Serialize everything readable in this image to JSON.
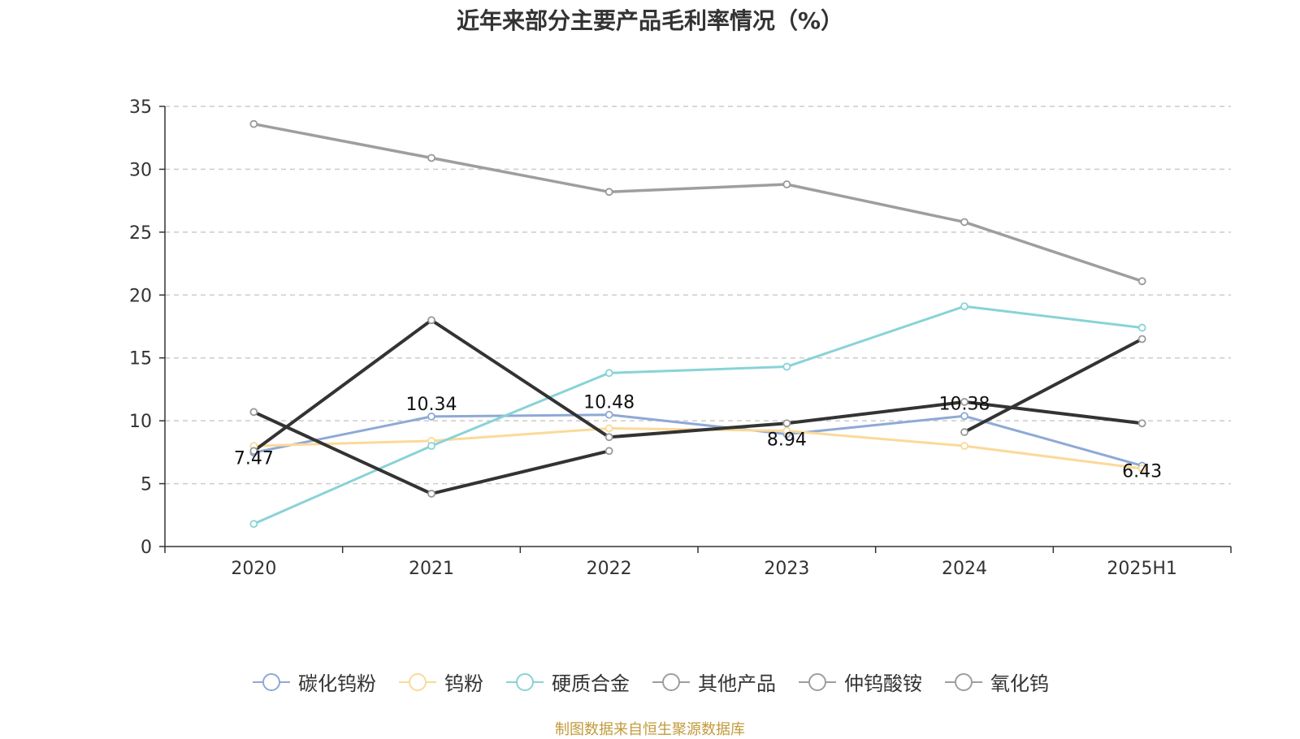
{
  "chart_data": {
    "type": "line",
    "title": "近年来部分主要产品毛利率情况（%）",
    "categories": [
      "2020",
      "2021",
      "2022",
      "2023",
      "2024",
      "2025H1"
    ],
    "ylim": [
      0,
      35
    ],
    "yticks": [
      0,
      5,
      10,
      15,
      20,
      25,
      30,
      35
    ],
    "grid": true,
    "legend_position": "bottom",
    "series": [
      {
        "name": "碳化钨粉",
        "color": "#8ea9d6",
        "width": 3,
        "values": [
          7.47,
          10.34,
          10.48,
          8.94,
          10.38,
          6.43
        ],
        "labels": [
          "7.47",
          "10.34",
          "10.48",
          "8.94",
          "10.38",
          "6.43"
        ]
      },
      {
        "name": "钨粉",
        "color": "#fbd999",
        "width": 3,
        "values": [
          8.0,
          8.4,
          9.4,
          9.2,
          8.0,
          6.2
        ]
      },
      {
        "name": "硬质合金",
        "color": "#88d3d6",
        "width": 3,
        "values": [
          1.8,
          8.0,
          13.8,
          14.3,
          19.1,
          17.4
        ]
      },
      {
        "name": "其他产品",
        "color": "#333333",
        "width": 4,
        "values": [
          7.6,
          18.0,
          8.7,
          9.8,
          11.5,
          9.8
        ]
      },
      {
        "name": "仲钨酸铵",
        "color": "#333333",
        "width": 4,
        "values": [
          10.7,
          4.2,
          7.6,
          null,
          9.1,
          16.5
        ]
      },
      {
        "name": "氧化钨",
        "color": "#9e9e9e",
        "width": 3.5,
        "values": [
          33.6,
          30.9,
          28.2,
          28.8,
          25.8,
          21.1
        ]
      }
    ],
    "source": "制图数据来自恒生聚源数据库"
  },
  "colors": {
    "axis": "#333333",
    "grid": "#cccccc",
    "marker_fill": "#ffffff",
    "marker_stroke": "#999999",
    "source_text": "#c29a3b"
  }
}
